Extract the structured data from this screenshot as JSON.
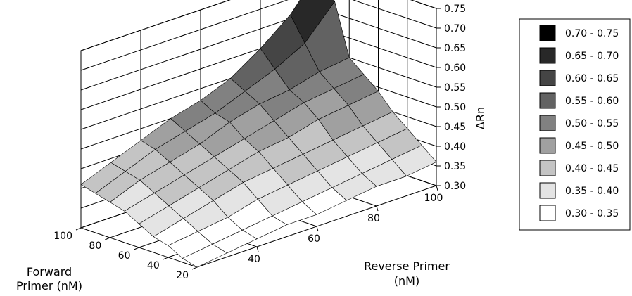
{
  "chart_data": {
    "type": "surface",
    "z_label": "ΔRn",
    "x_label_lines": [
      "Forward",
      "Primer (nM)"
    ],
    "y_label_lines": [
      "Reverse Primer",
      "(nM)"
    ],
    "x_ticks": [
      "100",
      "80",
      "60",
      "40",
      "20"
    ],
    "y_ticks": [
      "40",
      "60",
      "80",
      "100"
    ],
    "z_ticks": [
      "0.75",
      "0.70",
      "0.65",
      "0.60",
      "0.55",
      "0.50",
      "0.45",
      "0.40",
      "0.35",
      "0.30"
    ],
    "zlim": [
      0.3,
      0.75
    ],
    "forward_primer": [
      20,
      30,
      40,
      50,
      60,
      70,
      80,
      90,
      100
    ],
    "reverse_primer": [
      20,
      30,
      40,
      50,
      60,
      70,
      80,
      90,
      100
    ],
    "delta_rn": [
      [
        0.3,
        0.31,
        0.32,
        0.33,
        0.33,
        0.34,
        0.35,
        0.35,
        0.36
      ],
      [
        0.31,
        0.32,
        0.33,
        0.34,
        0.35,
        0.36,
        0.37,
        0.38,
        0.39
      ],
      [
        0.33,
        0.34,
        0.35,
        0.37,
        0.38,
        0.39,
        0.4,
        0.41,
        0.42
      ],
      [
        0.34,
        0.36,
        0.38,
        0.4,
        0.41,
        0.42,
        0.43,
        0.44,
        0.45
      ],
      [
        0.36,
        0.38,
        0.4,
        0.42,
        0.44,
        0.45,
        0.47,
        0.48,
        0.49
      ],
      [
        0.38,
        0.4,
        0.42,
        0.44,
        0.46,
        0.48,
        0.5,
        0.51,
        0.52
      ],
      [
        0.39,
        0.42,
        0.44,
        0.46,
        0.49,
        0.51,
        0.52,
        0.54,
        0.55
      ],
      [
        0.4,
        0.43,
        0.46,
        0.48,
        0.5,
        0.53,
        0.56,
        0.6,
        0.68
      ],
      [
        0.41,
        0.44,
        0.47,
        0.5,
        0.52,
        0.55,
        0.6,
        0.66,
        0.75
      ]
    ],
    "legend": [
      {
        "label": "0.70 - 0.75",
        "color": "#000000"
      },
      {
        "label": "0.65 - 0.70",
        "color": "#282828"
      },
      {
        "label": "0.60 - 0.65",
        "color": "#454545"
      },
      {
        "label": "0.55 - 0.60",
        "color": "#626262"
      },
      {
        "label": "0.50 - 0.55",
        "color": "#818181"
      },
      {
        "label": "0.45 - 0.50",
        "color": "#a0a0a0"
      },
      {
        "label": "0.40 - 0.45",
        "color": "#c4c4c4"
      },
      {
        "label": "0.35 - 0.40",
        "color": "#e4e4e4"
      },
      {
        "label": "0.30 - 0.35",
        "color": "#ffffff"
      }
    ],
    "legend_position": "right",
    "grid": true
  }
}
